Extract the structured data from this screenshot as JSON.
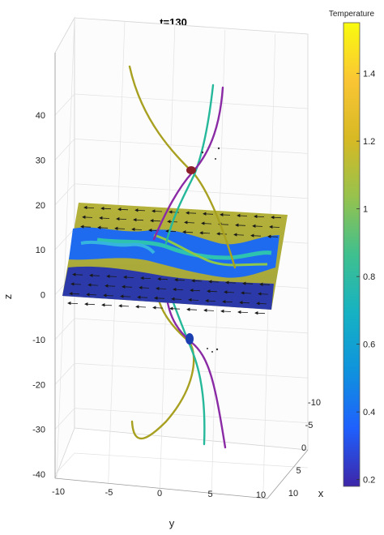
{
  "chart_data": {
    "type": "3d-slice-streamlines",
    "title": "t=130",
    "xlabel": "x",
    "ylabel": "y",
    "zlabel": "z",
    "x_ticks": [
      "-10",
      "-5",
      "0",
      "5",
      "10"
    ],
    "y_ticks": [
      "-10",
      "-5",
      "0",
      "5",
      "10"
    ],
    "z_ticks": [
      "40",
      "30",
      "20",
      "10",
      "0",
      "-10",
      "-20",
      "-30",
      "-40"
    ],
    "xlim": [
      -10,
      10
    ],
    "ylim": [
      -10,
      10
    ],
    "zlim": [
      -40,
      40
    ],
    "grid": true,
    "colorbar": {
      "title": "Temperature",
      "ticks": [
        "1.4",
        "1.2",
        "1",
        "0.8",
        "0.6",
        "0.4",
        "0.2"
      ],
      "range": [
        0.18,
        1.55
      ],
      "colormap": [
        "#3d26a8",
        "#1f60fd",
        "#0f93dd",
        "#16b2c3",
        "#3fc08e",
        "#97c24d",
        "#d7b924",
        "#fac535",
        "#f9fb0e"
      ]
    },
    "series": [
      {
        "color": "#a8a020"
      },
      {
        "color": "#25b89a"
      },
      {
        "color": "#8a2aa5"
      }
    ]
  }
}
